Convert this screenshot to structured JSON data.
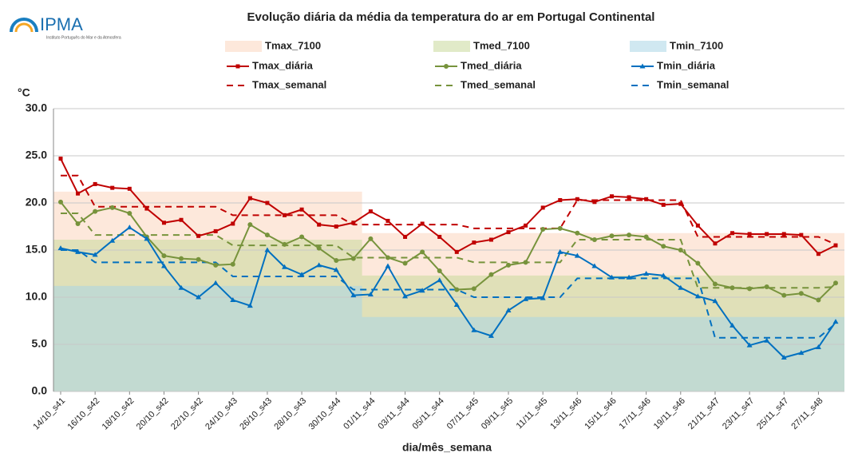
{
  "logo": {
    "name": "IPMA",
    "subtitle": "Instituto Português do Mar e da Atmosfera"
  },
  "chart_data": {
    "type": "line",
    "title": "Evolução diária da média da temperatura do ar em Portugal Continental",
    "y_label": "°C",
    "x_label": "dia/mês_semana",
    "categories": [
      "14/10_s41",
      null,
      "16/10_s42",
      null,
      "18/10_s42",
      null,
      "20/10_s42",
      null,
      "22/10_s42",
      null,
      "24/10_s43",
      null,
      "26/10_s43",
      null,
      "28/10_s43",
      null,
      "30/10_s44",
      null,
      "01/11_s44",
      null,
      "03/11_s44",
      null,
      "05/11_s44",
      null,
      "07/11_s45",
      null,
      "09/11_s45",
      null,
      "11/11_s45",
      null,
      "13/11_s46",
      null,
      "15/11_s46",
      null,
      "17/11_s46",
      null,
      "19/11_s46",
      null,
      "21/11_s47",
      null,
      "23/11_s47",
      null,
      "25/11_s47",
      null,
      "27/11_s48",
      null
    ],
    "ylim": [
      0,
      30
    ],
    "yticks": [
      {
        "value": 0,
        "label": "0.0"
      },
      {
        "value": 5,
        "label": "5.0"
      },
      {
        "value": 10,
        "label": "10.0"
      },
      {
        "value": 15,
        "label": "15.0"
      },
      {
        "value": 20,
        "label": "20.0"
      },
      {
        "value": 25,
        "label": "25.0"
      },
      {
        "value": 30,
        "label": "30.0"
      }
    ],
    "grid": true,
    "series": [
      {
        "name": "Tmax_7100",
        "style": "band",
        "color": "#fbd5bd",
        "values": [
          21.2,
          21.2,
          21.2,
          21.2,
          21.2,
          21.2,
          21.2,
          21.2,
          21.2,
          21.2,
          21.2,
          21.2,
          21.2,
          21.2,
          21.2,
          21.2,
          21.2,
          21.2,
          16.8,
          16.8,
          16.8,
          16.8,
          16.8,
          16.8,
          16.8,
          16.8,
          16.8,
          16.8,
          16.8,
          16.8,
          16.8,
          16.8,
          16.8,
          16.8,
          16.8,
          16.8,
          16.8,
          16.8,
          16.8,
          16.8,
          16.8,
          16.8,
          16.8,
          16.8,
          16.8,
          16.8
        ]
      },
      {
        "name": "Tmed_7100",
        "style": "band",
        "color": "#c9d89a",
        "values": [
          16.1,
          16.1,
          16.1,
          16.1,
          16.1,
          16.1,
          16.1,
          16.1,
          16.1,
          16.1,
          16.1,
          16.1,
          16.1,
          16.1,
          16.1,
          16.1,
          16.1,
          16.1,
          12.3,
          12.3,
          12.3,
          12.3,
          12.3,
          12.3,
          12.3,
          12.3,
          12.3,
          12.3,
          12.3,
          12.3,
          12.3,
          12.3,
          12.3,
          12.3,
          12.3,
          12.3,
          12.3,
          12.3,
          12.3,
          12.3,
          12.3,
          12.3,
          12.3,
          12.3,
          12.3,
          12.3
        ]
      },
      {
        "name": "Tmin_7100",
        "style": "band",
        "color": "#a9d6e6",
        "values": [
          11.2,
          11.2,
          11.2,
          11.2,
          11.2,
          11.2,
          11.2,
          11.2,
          11.2,
          11.2,
          11.2,
          11.2,
          11.2,
          11.2,
          11.2,
          11.2,
          11.2,
          11.2,
          7.9,
          7.9,
          7.9,
          7.9,
          7.9,
          7.9,
          7.9,
          7.9,
          7.9,
          7.9,
          7.9,
          7.9,
          7.9,
          7.9,
          7.9,
          7.9,
          7.9,
          7.9,
          7.9,
          7.9,
          7.9,
          7.9,
          7.9,
          7.9,
          7.9,
          7.9,
          7.9,
          7.9
        ]
      },
      {
        "name": "Tmax_diária",
        "style": "line",
        "marker": "square",
        "color": "#c00000",
        "values": [
          24.7,
          21.0,
          22.0,
          21.6,
          21.5,
          19.4,
          17.9,
          18.2,
          16.5,
          17.0,
          17.8,
          20.5,
          20.0,
          18.7,
          19.3,
          17.7,
          17.5,
          17.9,
          19.1,
          18.1,
          16.4,
          17.8,
          16.4,
          14.8,
          15.8,
          16.1,
          16.9,
          17.6,
          19.5,
          20.3,
          20.4,
          20.1,
          20.7,
          20.6,
          20.4,
          19.8,
          19.9,
          17.6,
          15.7,
          16.8,
          16.7,
          16.7,
          16.7,
          16.6,
          14.6,
          15.5
        ]
      },
      {
        "name": "Tmed_diária",
        "style": "line",
        "marker": "circle",
        "color": "#77933c",
        "values": [
          20.1,
          17.8,
          19.1,
          19.5,
          18.9,
          16.4,
          14.4,
          14.1,
          14.0,
          13.4,
          13.5,
          17.7,
          16.6,
          15.6,
          16.4,
          15.2,
          13.9,
          14.1,
          16.2,
          14.2,
          13.6,
          14.8,
          12.8,
          10.8,
          10.9,
          12.4,
          13.4,
          13.7,
          17.2,
          17.3,
          16.8,
          16.1,
          16.5,
          16.6,
          16.4,
          15.4,
          15.0,
          13.6,
          11.4,
          11.0,
          10.9,
          11.1,
          10.2,
          10.4,
          9.7,
          11.5
        ]
      },
      {
        "name": "Tmin_diária",
        "style": "line",
        "marker": "triangle",
        "color": "#0070c0",
        "values": [
          15.2,
          14.8,
          14.5,
          16.0,
          17.4,
          16.2,
          13.3,
          11.0,
          10.0,
          11.5,
          9.7,
          9.1,
          15.0,
          13.2,
          12.4,
          13.4,
          12.9,
          10.2,
          10.3,
          13.3,
          10.1,
          10.7,
          11.8,
          9.2,
          6.5,
          5.9,
          8.6,
          9.8,
          9.9,
          14.8,
          14.4,
          13.3,
          12.1,
          12.1,
          12.5,
          12.3,
          11.0,
          10.1,
          9.6,
          7.0,
          4.9,
          5.4,
          3.6,
          4.1,
          4.7,
          7.4
        ]
      },
      {
        "name": "Tmax_semanal",
        "style": "dashed",
        "color": "#c00000",
        "values": [
          22.9,
          22.9,
          19.6,
          19.6,
          19.6,
          19.6,
          19.6,
          19.6,
          19.6,
          19.6,
          18.7,
          18.7,
          18.7,
          18.7,
          18.7,
          18.7,
          18.7,
          17.7,
          17.7,
          17.7,
          17.7,
          17.7,
          17.7,
          17.7,
          17.3,
          17.3,
          17.3,
          17.3,
          17.3,
          17.3,
          20.3,
          20.3,
          20.3,
          20.3,
          20.3,
          20.3,
          20.3,
          16.4,
          16.4,
          16.4,
          16.4,
          16.4,
          16.4,
          16.4,
          16.4,
          15.6
        ]
      },
      {
        "name": "Tmed_semanal",
        "style": "dashed",
        "color": "#77933c",
        "values": [
          18.9,
          18.9,
          16.6,
          16.6,
          16.6,
          16.6,
          16.6,
          16.6,
          16.6,
          16.6,
          15.5,
          15.5,
          15.5,
          15.5,
          15.5,
          15.5,
          15.5,
          14.2,
          14.2,
          14.2,
          14.2,
          14.2,
          14.2,
          14.2,
          13.7,
          13.7,
          13.7,
          13.7,
          13.7,
          13.7,
          16.1,
          16.1,
          16.1,
          16.1,
          16.1,
          16.1,
          16.1,
          11.0,
          11.0,
          11.0,
          11.0,
          11.0,
          11.0,
          11.0,
          11.0,
          11.1
        ]
      },
      {
        "name": "Tmin_semanal",
        "style": "dashed",
        "color": "#0070c0",
        "values": [
          15.0,
          15.0,
          13.7,
          13.7,
          13.7,
          13.7,
          13.7,
          13.7,
          13.7,
          13.7,
          12.2,
          12.2,
          12.2,
          12.2,
          12.2,
          12.2,
          12.2,
          10.8,
          10.8,
          10.8,
          10.8,
          10.8,
          10.8,
          10.8,
          10.0,
          10.0,
          10.0,
          10.0,
          10.0,
          10.0,
          12.0,
          12.0,
          12.0,
          12.0,
          12.0,
          12.0,
          12.0,
          12.0,
          5.7,
          5.7,
          5.7,
          5.7,
          5.7,
          5.7,
          5.7,
          7.2
        ]
      }
    ]
  }
}
